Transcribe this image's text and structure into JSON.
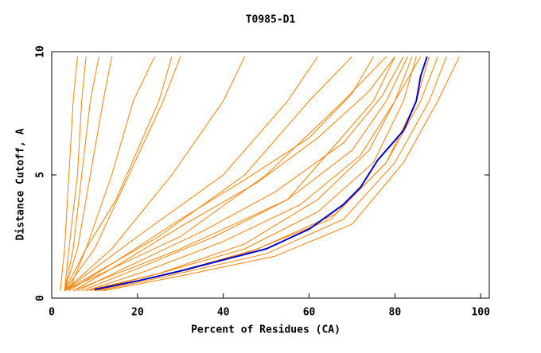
{
  "chart_data": {
    "type": "line",
    "title": "T0985-D1",
    "x_label": "Percent of Residues (CA)",
    "y_label": "Distance Cutoff, A",
    "xlim": [
      0,
      102
    ],
    "ylim": [
      0,
      10
    ],
    "xticks": [
      0,
      20,
      40,
      60,
      80,
      100
    ],
    "yticks": [
      0,
      5,
      10
    ],
    "series": [
      {
        "color": "#ff8000",
        "x": [
          2,
          3,
          4,
          5,
          6
        ],
        "values": [
          0.3,
          2,
          5,
          8,
          9.8
        ]
      },
      {
        "color": "#ff8000",
        "x": [
          3,
          4,
          6,
          7,
          8
        ],
        "values": [
          0.3,
          2,
          5,
          8,
          9.8
        ]
      },
      {
        "color": "#ff8000",
        "x": [
          3,
          5,
          7,
          9,
          11
        ],
        "values": [
          0.3,
          2,
          5,
          8,
          9.8
        ]
      },
      {
        "color": "#ff8000",
        "x": [
          3,
          6,
          9,
          12,
          14
        ],
        "values": [
          0.3,
          2,
          5,
          8,
          9.8
        ]
      },
      {
        "color": "#ff8000",
        "x": [
          4,
          8,
          14,
          19,
          24
        ],
        "values": [
          0.3,
          2,
          5,
          8,
          9.8
        ]
      },
      {
        "color": "#ff8000",
        "x": [
          3,
          10,
          18,
          26,
          30
        ],
        "values": [
          0.3,
          2,
          5,
          8,
          9.8
        ]
      },
      {
        "color": "#ff8000",
        "x": [
          3,
          14,
          28,
          40,
          45
        ],
        "values": [
          0.3,
          2,
          5,
          8,
          9.8
        ]
      },
      {
        "color": "#ff8000",
        "x": [
          3,
          20,
          40,
          55,
          62
        ],
        "values": [
          0.3,
          2.5,
          5,
          8,
          9.8
        ]
      },
      {
        "color": "#ff8000",
        "x": [
          3,
          25,
          45,
          60,
          70
        ],
        "values": [
          0.3,
          2.5,
          5,
          8,
          9.8
        ]
      },
      {
        "color": "#ff8000",
        "x": [
          3,
          30,
          50,
          68,
          78
        ],
        "values": [
          0.3,
          2.5,
          5,
          8,
          9.8
        ]
      },
      {
        "color": "#ff8000",
        "x": [
          5,
          30,
          55,
          65,
          75,
          80
        ],
        "values": [
          0.3,
          2,
          4,
          6,
          8,
          9.8
        ]
      },
      {
        "color": "#ff8000",
        "x": [
          8,
          25,
          45,
          62,
          75,
          82,
          85
        ],
        "values": [
          0.3,
          1,
          2,
          3.5,
          5.5,
          8,
          9.8
        ]
      },
      {
        "color": "#ff8000",
        "x": [
          9,
          25,
          45,
          62,
          74,
          80,
          84
        ],
        "values": [
          0.3,
          1,
          2.2,
          4,
          6,
          8,
          9.8
        ]
      },
      {
        "color": "#ff8000",
        "x": [
          10,
          25,
          45,
          65,
          78,
          85,
          88
        ],
        "values": [
          0.3,
          0.9,
          1.8,
          3.2,
          5.5,
          8,
          9.8
        ]
      },
      {
        "color": "#ff8000",
        "x": [
          11,
          27,
          50,
          68,
          80,
          88,
          92
        ],
        "values": [
          0.3,
          0.9,
          1.8,
          3.2,
          5.5,
          8,
          9.8
        ]
      },
      {
        "color": "#ff8000",
        "x": [
          12,
          30,
          52,
          70,
          82,
          90,
          95
        ],
        "values": [
          0.3,
          0.9,
          1.7,
          3,
          5.5,
          8,
          9.8
        ]
      },
      {
        "color": "#ff8000",
        "x": [
          8,
          22,
          40,
          58,
          72,
          80,
          86
        ],
        "values": [
          0.3,
          1.1,
          2.3,
          3.8,
          5.8,
          8,
          9.8
        ]
      },
      {
        "color": "#ff8000",
        "x": [
          7,
          20,
          38,
          55,
          70,
          78,
          83
        ],
        "values": [
          0.3,
          1.2,
          2.5,
          4,
          6,
          8,
          9.8
        ]
      },
      {
        "color": "#ff8000",
        "x": [
          6,
          18,
          35,
          52,
          68,
          77,
          82
        ],
        "values": [
          0.3,
          1.3,
          2.7,
          4.3,
          6.3,
          8.2,
          9.8
        ]
      },
      {
        "color": "#ff8000",
        "x": [
          5,
          16,
          30,
          48,
          62,
          74,
          80
        ],
        "values": [
          0.3,
          1.4,
          2.9,
          4.7,
          6.5,
          8.4,
          9.8
        ]
      },
      {
        "color": "#ff8000",
        "x": [
          10,
          28,
          48,
          66,
          78,
          86,
          90
        ],
        "values": [
          0.3,
          1,
          2,
          3.4,
          5.5,
          8,
          9.8
        ]
      },
      {
        "color": "#ff8000",
        "x": [
          4,
          15,
          30,
          45,
          60,
          70,
          75
        ],
        "values": [
          0.3,
          1.5,
          3.2,
          4.8,
          6.5,
          8.3,
          9.8
        ]
      },
      {
        "color": "#ff8000",
        "x": [
          3,
          8,
          15,
          20,
          25,
          28
        ],
        "values": [
          0.3,
          2,
          4,
          6,
          8,
          9.8
        ]
      },
      {
        "color": "#0000cc",
        "x": [
          10,
          20,
          30,
          40,
          50,
          60,
          68,
          72,
          76,
          82,
          85,
          86,
          87.5
        ],
        "values": [
          0.35,
          0.7,
          1.1,
          1.55,
          2,
          2.8,
          3.8,
          4.5,
          5.6,
          6.8,
          8,
          9,
          9.8
        ]
      }
    ]
  }
}
